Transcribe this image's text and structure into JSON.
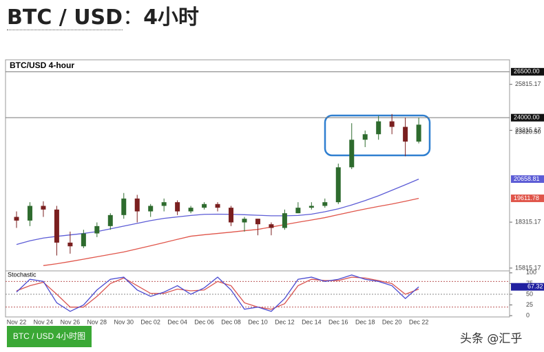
{
  "header": {
    "pair": "BTC / USD",
    "separator": "：",
    "timeframe": "4小时"
  },
  "chart_data": {
    "type": "candlestick",
    "title": "BTC/USD 4-hour",
    "categories": [
      "Nov 22",
      null,
      "Nov 24",
      null,
      "Nov 26",
      null,
      "Nov 28",
      null,
      "Nov 30",
      null,
      "Dec 02",
      null,
      "Dec 04",
      null,
      "Dec 06",
      null,
      "Dec 08",
      null,
      "Dec 10",
      null,
      "Dec 12",
      null,
      "Dec 14",
      null,
      "Dec 16",
      null,
      "Dec 18",
      null,
      "Dec 20",
      null,
      "Dec 22"
    ],
    "open": [
      18600,
      18400,
      19200,
      19000,
      17200,
      17000,
      17700,
      18100,
      18700,
      19600,
      18900,
      19200,
      19400,
      18900,
      19100,
      19300,
      19100,
      18300,
      18500,
      18200,
      18000,
      18800,
      19100,
      19200,
      19400,
      21300,
      22800,
      23100,
      23800,
      23500,
      22700
    ],
    "high": [
      18900,
      19400,
      19450,
      19200,
      17800,
      17900,
      18300,
      18800,
      19900,
      19800,
      19300,
      19600,
      19500,
      19200,
      19400,
      19400,
      19200,
      18600,
      18500,
      18300,
      19000,
      19400,
      19400,
      19600,
      21500,
      23700,
      23300,
      24100,
      24200,
      24000,
      24000
    ],
    "low": [
      18000,
      18100,
      18600,
      16500,
      16600,
      16900,
      17500,
      17900,
      18500,
      18300,
      18600,
      18900,
      18700,
      18800,
      19000,
      18900,
      18100,
      17800,
      17600,
      17600,
      17900,
      18800,
      19000,
      19100,
      19300,
      21200,
      22400,
      22800,
      23100,
      21900,
      22600
    ],
    "close": [
      18400,
      19200,
      19000,
      17200,
      17000,
      17700,
      18100,
      18700,
      19600,
      18900,
      19200,
      19400,
      18900,
      19100,
      19300,
      19100,
      18300,
      18500,
      18200,
      18000,
      18800,
      19100,
      19200,
      19400,
      21300,
      22800,
      23100,
      23800,
      23500,
      22700,
      23620.5
    ],
    "close_label": "23620.50",
    "up_color": "#2e6b2e",
    "down_color": "#7a1f1f",
    "overlays": [
      {
        "color": "#5c5cd6",
        "values": [
          17100,
          17300,
          17450,
          17540,
          17620,
          17700,
          17800,
          17950,
          18100,
          18250,
          18400,
          18520,
          18600,
          18680,
          18740,
          18750,
          18740,
          18720,
          18690,
          18660,
          18660,
          18680,
          18750,
          18880,
          19040,
          19250,
          19490,
          19750,
          20050,
          20350,
          20658.81
        ]
      },
      {
        "color": "#e0554a",
        "values": [
          null,
          null,
          15950,
          16050,
          16170,
          16300,
          16430,
          16560,
          16690,
          16860,
          17030,
          17200,
          17380,
          17550,
          17630,
          17700,
          17770,
          17850,
          17920,
          18050,
          18180,
          18310,
          18430,
          18560,
          18720,
          18880,
          19030,
          19170,
          19300,
          19450,
          19611.78
        ]
      }
    ],
    "hlines": {
      "values": [
        26500,
        24000
      ],
      "value_labels": [
        "26500.00",
        "24000.00"
      ]
    },
    "ylim": [
      15700,
      27150
    ],
    "yticks": [
      15815.17,
      18315.17,
      23315.17,
      25815.17
    ],
    "stochastic": {
      "title": "Stochastic",
      "ylim": [
        -3,
        103
      ],
      "yticks": [
        0,
        25,
        50,
        75,
        100
      ],
      "levels": [
        80,
        50,
        20
      ],
      "k": {
        "color": "#4a4ad0",
        "values": [
          55,
          85,
          80,
          30,
          10,
          25,
          60,
          85,
          90,
          60,
          45,
          55,
          70,
          50,
          65,
          90,
          60,
          15,
          20,
          10,
          40,
          85,
          90,
          80,
          85,
          95,
          85,
          80,
          70,
          40,
          67.32
        ]
      },
      "d": {
        "color": "#d9534f",
        "values": [
          58,
          70,
          78,
          50,
          20,
          20,
          45,
          75,
          88,
          70,
          52,
          52,
          62,
          58,
          60,
          80,
          70,
          30,
          20,
          15,
          28,
          70,
          85,
          82,
          82,
          90,
          88,
          82,
          75,
          50,
          62
        ]
      }
    }
  },
  "footer": {
    "button": "BTC / USD 4小时图",
    "watermark": "头条 @汇乎"
  }
}
